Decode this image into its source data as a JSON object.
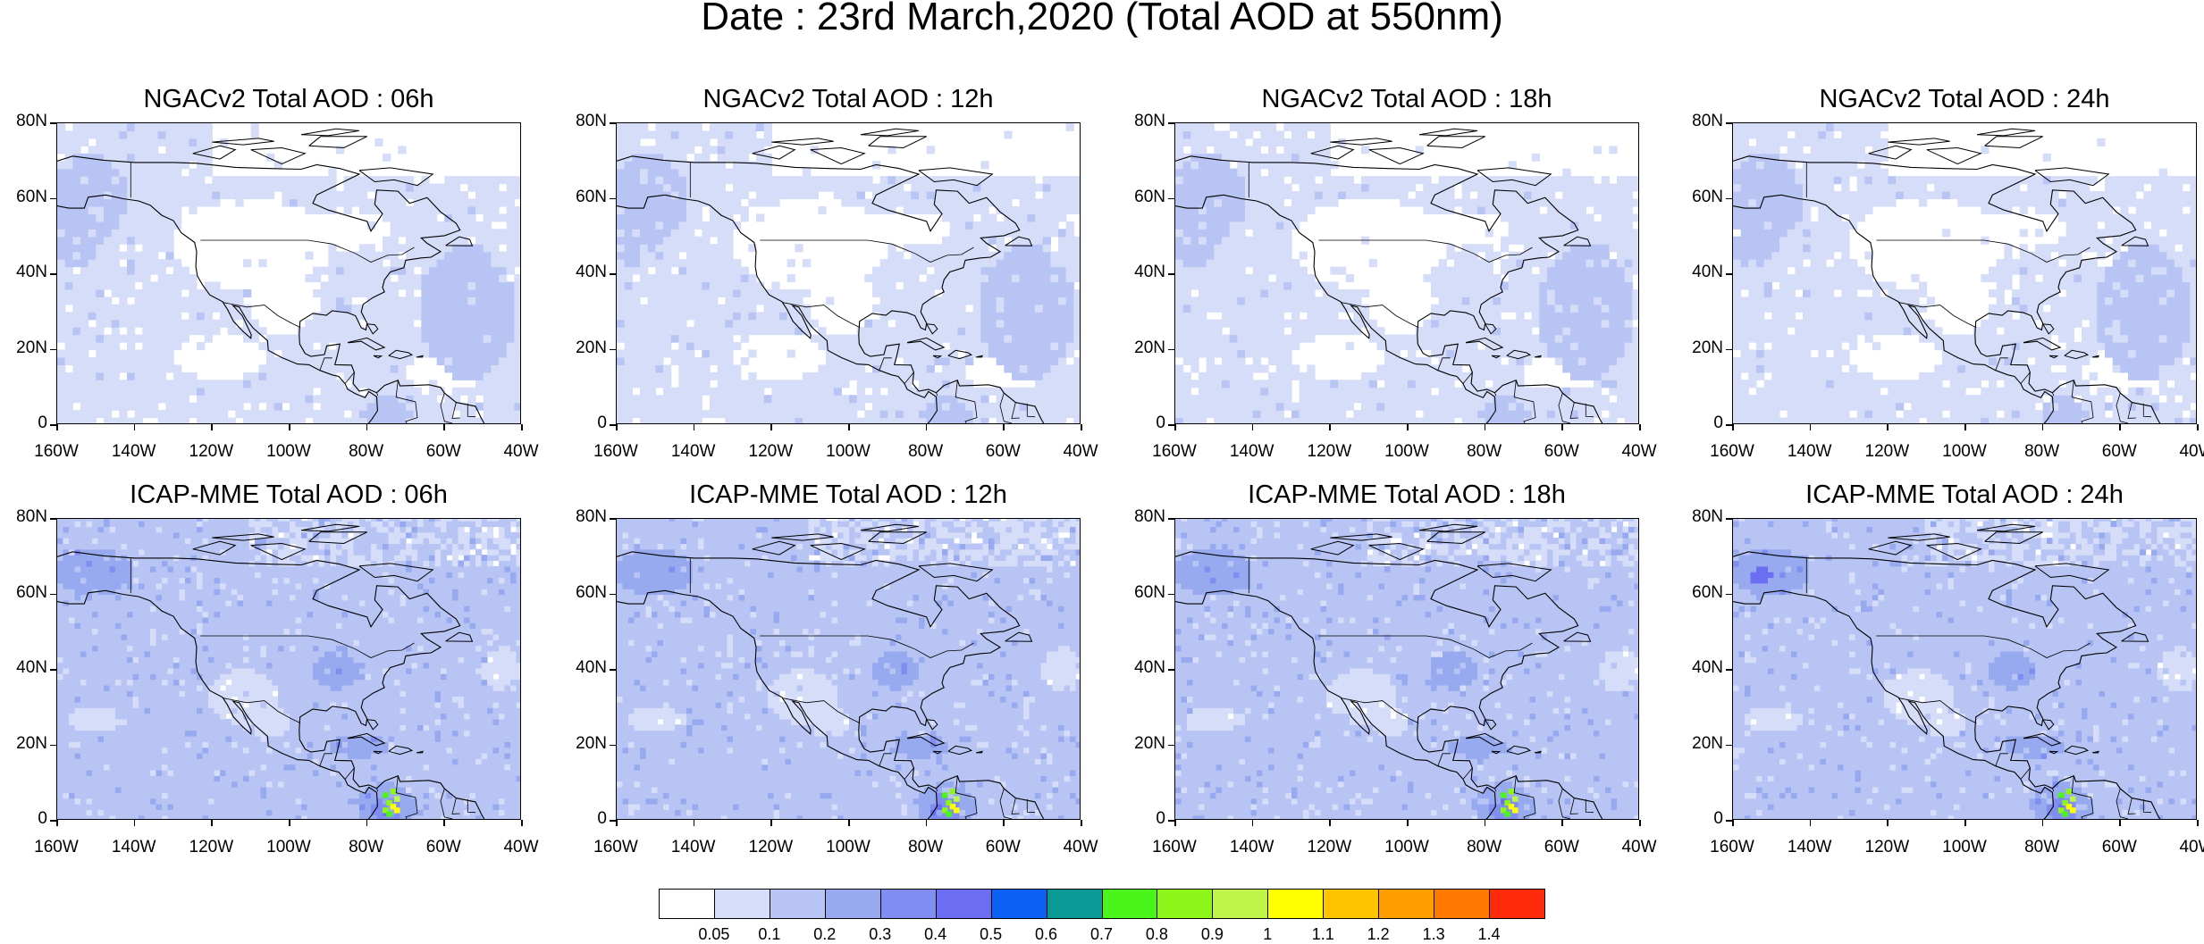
{
  "figure": {
    "title": "Date : 23rd March,2020 (Total AOD at 550nm)"
  },
  "panels": [
    {
      "title": "NGACv2 Total AOD : 06h",
      "model": "NGACv2",
      "hour": "06h"
    },
    {
      "title": "NGACv2 Total AOD : 12h",
      "model": "NGACv2",
      "hour": "12h"
    },
    {
      "title": "NGACv2 Total AOD : 18h",
      "model": "NGACv2",
      "hour": "18h"
    },
    {
      "title": "NGACv2 Total AOD : 24h",
      "model": "NGACv2",
      "hour": "24h"
    },
    {
      "title": "ICAP-MME Total AOD : 06h",
      "model": "ICAP-MME",
      "hour": "06h"
    },
    {
      "title": "ICAP-MME Total AOD : 12h",
      "model": "ICAP-MME",
      "hour": "12h"
    },
    {
      "title": "ICAP-MME Total AOD : 18h",
      "model": "ICAP-MME",
      "hour": "18h"
    },
    {
      "title": "ICAP-MME Total AOD : 24h",
      "model": "ICAP-MME",
      "hour": "24h"
    }
  ],
  "axes": {
    "lat_ticks": [
      "80N",
      "60N",
      "40N",
      "20N",
      "0"
    ],
    "lon_ticks": [
      "160W",
      "140W",
      "120W",
      "100W",
      "80W",
      "60W",
      "40W"
    ],
    "lat_range": [
      0,
      80
    ],
    "lon_range": [
      -160,
      -40
    ]
  },
  "colorbar": {
    "colors": [
      "#ffffff",
      "#d6ddf8",
      "#b8c4f3",
      "#97aaf0",
      "#7f8ef0",
      "#6b6ef0",
      "#0b60f5",
      "#0a9a96",
      "#49f51a",
      "#8ef51a",
      "#bff54a",
      "#ffff00",
      "#ffc400",
      "#ff9e00",
      "#ff7800",
      "#ff2a0a"
    ],
    "labels": [
      "0.05",
      "0.1",
      "0.2",
      "0.3",
      "0.4",
      "0.5",
      "0.6",
      "0.7",
      "0.8",
      "0.9",
      "1",
      "1.1",
      "1.2",
      "1.3",
      "1.4"
    ]
  }
}
